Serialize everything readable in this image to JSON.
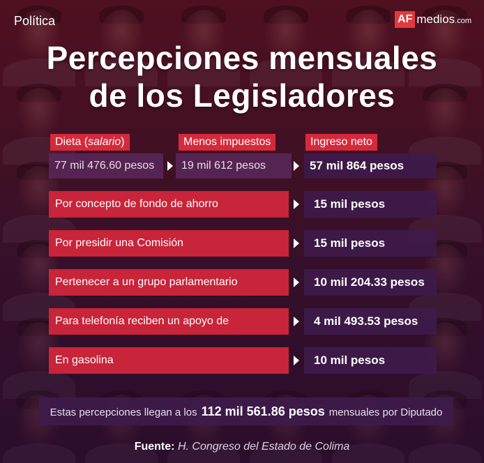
{
  "section": "Política",
  "logo": {
    "mark": "AF",
    "name": "medios",
    "domain": ".com",
    "accent": "#e03a3e"
  },
  "title": {
    "line1": "Percepciones mensuales",
    "line2": "de los Legisladores"
  },
  "headers": {
    "dieta": "Dieta (",
    "dieta_em": "salario",
    "dieta_close": ")",
    "impuestos": "Menos impuestos",
    "neto": "Ingreso neto"
  },
  "top_row": {
    "dieta": "77 mil 476.60 pesos",
    "impuestos": "19 mil 612 pesos",
    "neto": "57 mil 864 pesos"
  },
  "rows": [
    {
      "label": "Por concepto de fondo de ahorro",
      "value": "15 mil pesos"
    },
    {
      "label": "Por presidir una Comisión",
      "value": "15 mil pesos"
    },
    {
      "label": "Pertenecer a un grupo parlamentario",
      "value": "10 mil 204.33 pesos"
    },
    {
      "label": "Para telefonía reciben un apoyo de",
      "value": "4 mil 493.53 pesos"
    },
    {
      "label": "En gasolina",
      "value": "10 mil pesos"
    }
  ],
  "total": {
    "prefix": "Estas percepciones llegan a los",
    "amount": "112 mil 561.86 pesos",
    "suffix": "mensuales por Diputado"
  },
  "source": {
    "label": "Fuente:",
    "name": "H. Congreso del Estado de Colima"
  },
  "colors": {
    "red": "#d42a3c",
    "purple": "#3e1a4a"
  }
}
